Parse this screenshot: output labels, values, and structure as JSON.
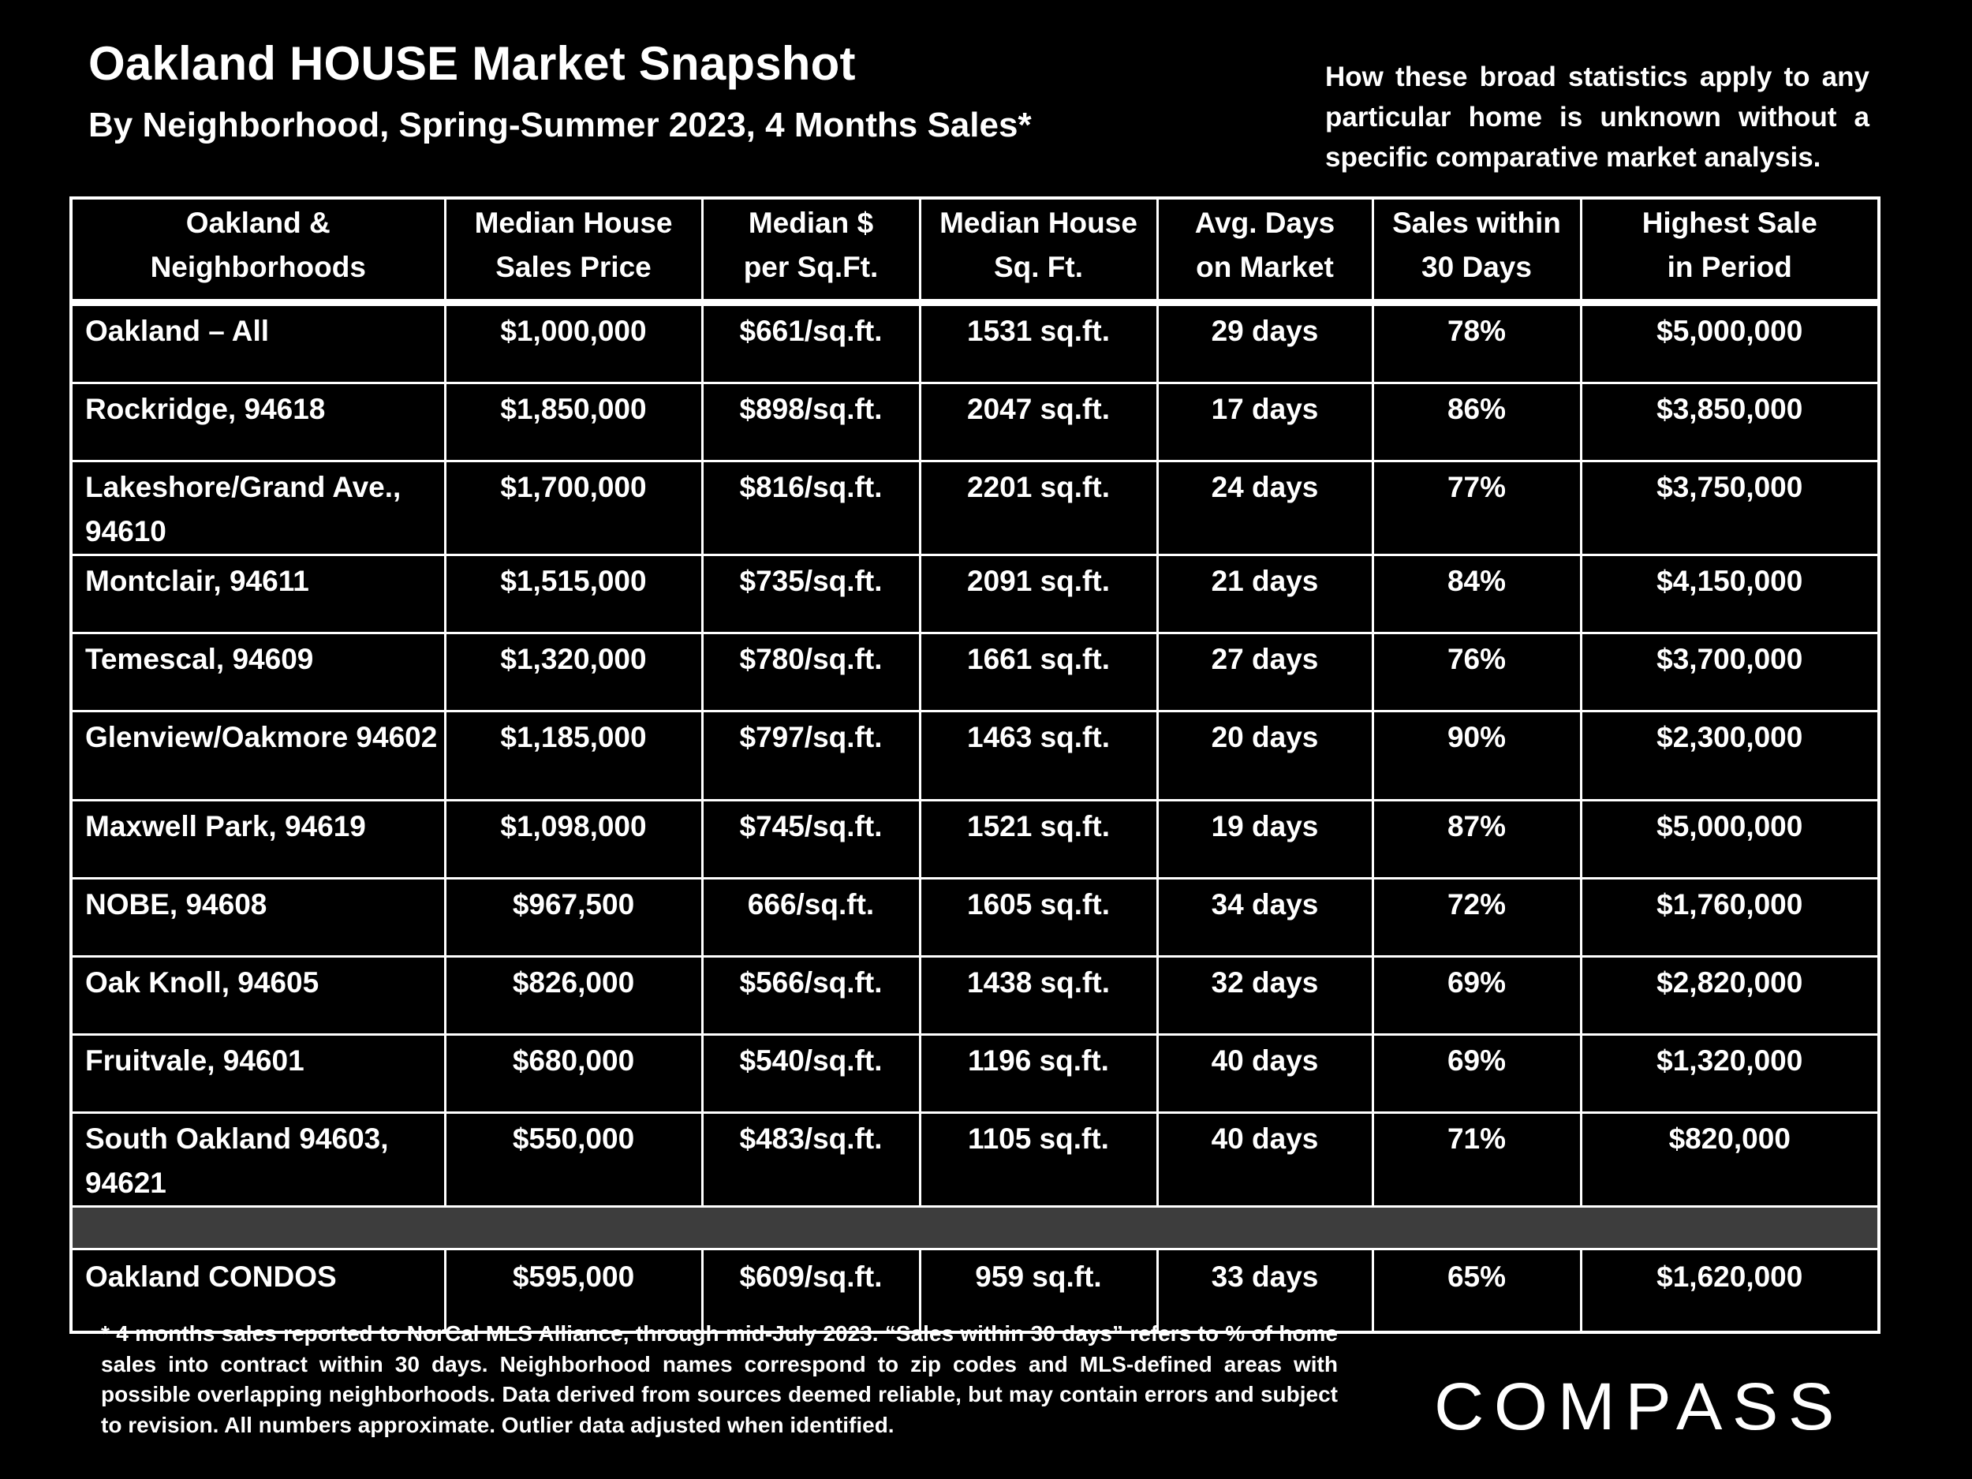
{
  "header": {
    "title": "Oakland HOUSE Market Snapshot",
    "subtitle": "By Neighborhood, Spring-Summer 2023, 4 Months Sales*",
    "disclaimer": "How these broad statistics apply to any particular home is unknown without a specific comparative market analysis."
  },
  "table": {
    "columns": [
      {
        "line1": "Oakland &",
        "line2": "Neighborhoods"
      },
      {
        "line1": "Median House",
        "line2": "Sales Price"
      },
      {
        "line1": "Median $",
        "line2": "per Sq.Ft."
      },
      {
        "line1": "Median House",
        "line2": "Sq. Ft."
      },
      {
        "line1": "Avg. Days",
        "line2": "on Market"
      },
      {
        "line1": "Sales within",
        "line2": "30 Days"
      },
      {
        "line1": "Highest Sale",
        "line2": "in Period"
      }
    ],
    "rows": [
      {
        "name": "Oakland – All",
        "price": "$1,000,000",
        "ppsf": "$661/sq.ft.",
        "sqft": "1531 sq.ft.",
        "days": "29 days",
        "pct30": "78%",
        "highest": "$5,000,000"
      },
      {
        "name": "Rockridge, 94618",
        "price": "$1,850,000",
        "ppsf": "$898/sq.ft.",
        "sqft": "2047 sq.ft.",
        "days": "17 days",
        "pct30": "86%",
        "highest": "$3,850,000"
      },
      {
        "name": "Lakeshore/Grand Ave., 94610",
        "price": "$1,700,000",
        "ppsf": "$816/sq.ft.",
        "sqft": "2201 sq.ft.",
        "days": "24 days",
        "pct30": "77%",
        "highest": "$3,750,000"
      },
      {
        "name": "Montclair, 94611",
        "price": "$1,515,000",
        "ppsf": "$735/sq.ft.",
        "sqft": "2091 sq.ft.",
        "days": "21 days",
        "pct30": "84%",
        "highest": "$4,150,000"
      },
      {
        "name": "Temescal, 94609",
        "price": "$1,320,000",
        "ppsf": "$780/sq.ft.",
        "sqft": "1661 sq.ft.",
        "days": "27 days",
        "pct30": "76%",
        "highest": "$3,700,000"
      },
      {
        "name": "Glenview/Oakmore 94602",
        "price": "$1,185,000",
        "ppsf": "$797/sq.ft.",
        "sqft": "1463 sq.ft.",
        "days": "20 days",
        "pct30": "90%",
        "highest": "$2,300,000"
      },
      {
        "name": "Maxwell Park, 94619",
        "price": "$1,098,000",
        "ppsf": "$745/sq.ft.",
        "sqft": "1521 sq.ft.",
        "days": "19 days",
        "pct30": "87%",
        "highest": "$5,000,000"
      },
      {
        "name": "NOBE, 94608",
        "price": "$967,500",
        "ppsf": "666/sq.ft.",
        "sqft": "1605 sq.ft.",
        "days": "34 days",
        "pct30": "72%",
        "highest": "$1,760,000"
      },
      {
        "name": "Oak Knoll, 94605",
        "price": "$826,000",
        "ppsf": "$566/sq.ft.",
        "sqft": "1438 sq.ft.",
        "days": "32 days",
        "pct30": "69%",
        "highest": "$2,820,000"
      },
      {
        "name": "Fruitvale, 94601",
        "price": "$680,000",
        "ppsf": "$540/sq.ft.",
        "sqft": "1196 sq.ft.",
        "days": "40 days",
        "pct30": "69%",
        "highest": "$1,320,000"
      },
      {
        "name": "South Oakland 94603, 94621",
        "price": "$550,000",
        "ppsf": "$483/sq.ft.",
        "sqft": "1105 sq.ft.",
        "days": "40 days",
        "pct30": "71%",
        "highest": "$820,000"
      }
    ],
    "condo": {
      "name": "Oakland CONDOS",
      "price": "$595,000",
      "ppsf": "$609/sq.ft.",
      "sqft": "959 sq.ft.",
      "days": "33 days",
      "pct30": "65%",
      "highest": "$1,620,000"
    }
  },
  "footnote": "* 4 months sales reported to NorCal MLS Alliance, through mid-July 2023. “Sales within 30 days” refers to % of home sales into contract within 30 days. Neighborhood names correspond to zip codes and MLS-defined areas with possible overlapping neighborhoods. Data derived from sources deemed reliable, but may contain errors and subject to revision. All numbers approximate. Outlier data adjusted when identified.",
  "logo": {
    "text": "COMPASS"
  },
  "colors": {
    "background": "#000000",
    "text": "#ffffff",
    "separator": "#3d3d3d"
  }
}
